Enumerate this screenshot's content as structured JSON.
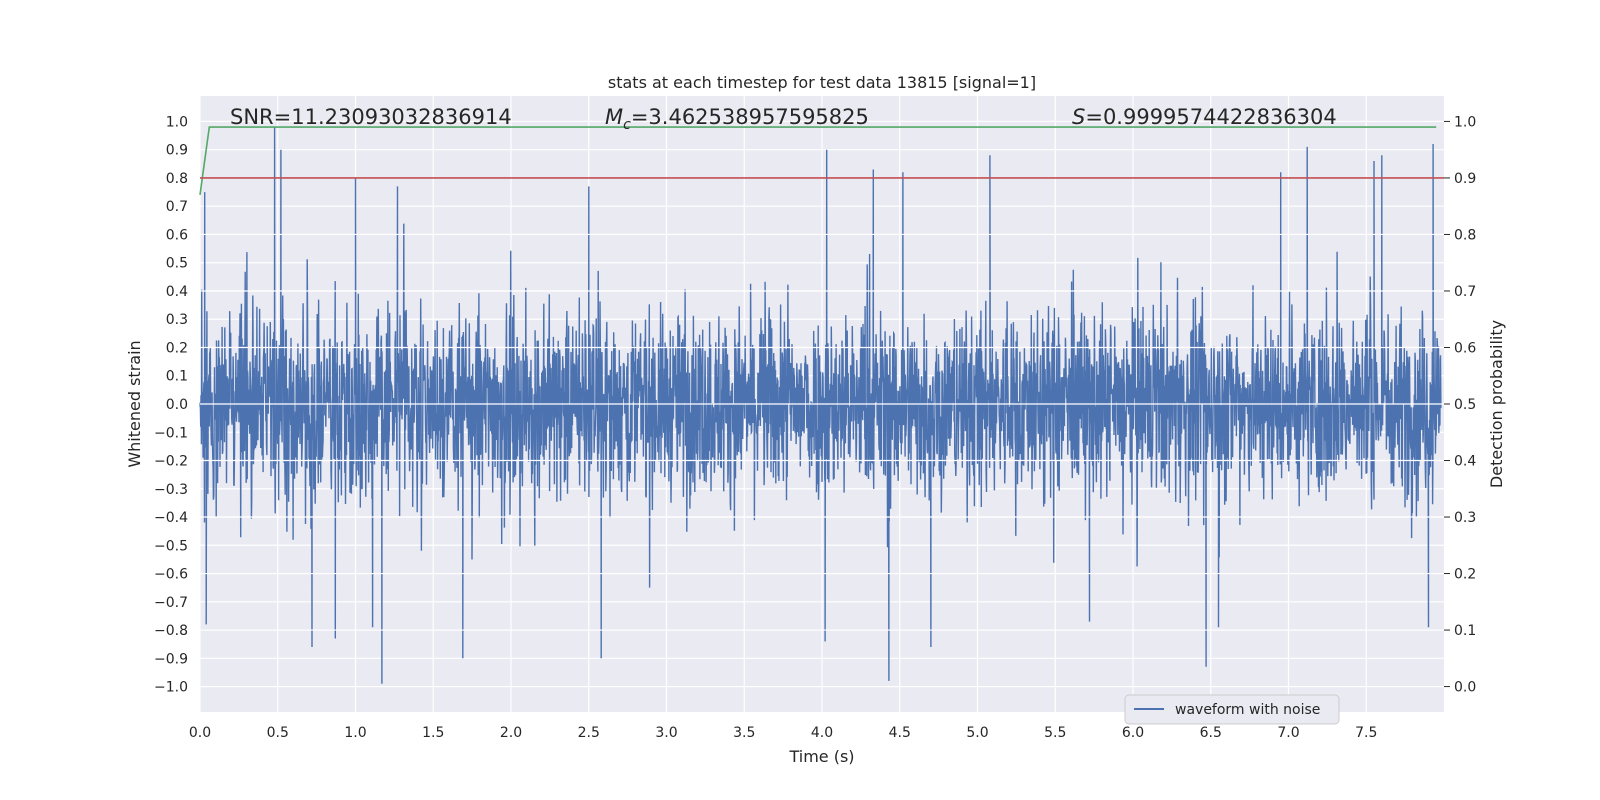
{
  "chart_data": {
    "type": "line",
    "title": "stats at each timestep for test data 13815 [signal=1]",
    "xlabel": "Time (s)",
    "ylabel": "Whitened strain",
    "y2label": "Detection probability",
    "xlim": [
      0.0,
      8.0
    ],
    "ylim": [
      -1.09,
      1.09
    ],
    "y2lim": [
      -0.045,
      1.045
    ],
    "xticks": [
      "0.0",
      "0.5",
      "1.0",
      "1.5",
      "2.0",
      "2.5",
      "3.0",
      "3.5",
      "4.0",
      "4.5",
      "5.0",
      "5.5",
      "6.0",
      "6.5",
      "7.0",
      "7.5"
    ],
    "yticks": [
      "1.0",
      "0.9",
      "0.8",
      "0.7",
      "0.6",
      "0.5",
      "0.4",
      "0.3",
      "0.2",
      "0.1",
      "0.0",
      "−0.1",
      "−0.2",
      "−0.3",
      "−0.4",
      "−0.5",
      "−0.6",
      "−0.7",
      "−0.8",
      "−0.9",
      "−1.0"
    ],
    "y2ticks": [
      "1.0",
      "0.9",
      "0.8",
      "0.7",
      "0.6",
      "0.5",
      "0.4",
      "0.3",
      "0.2",
      "0.1",
      "0.0"
    ],
    "grid": true,
    "legend": {
      "position": "lower-right",
      "entries": [
        "waveform with noise"
      ]
    },
    "annotations": {
      "snr": "SNR=11.23093032836914",
      "mc_symbol": "M",
      "mc_sub": "c",
      "mc_value": "=3.462538957595825",
      "s_symbol": "S",
      "s_value": "=0.9999574422836304"
    },
    "series": [
      {
        "name": "waveform with noise",
        "color": "#4c72b0",
        "axis": "left",
        "envelope_note": "dense noise, roughly within ±0.4 with spikes up to ±1.0",
        "peaks_x": [
          0.03,
          0.48,
          0.52,
          1.0,
          1.27,
          2.5,
          4.03,
          4.33,
          4.52,
          5.08,
          6.95,
          7.12,
          7.55,
          7.6,
          7.93
        ],
        "peaks_y": [
          0.75,
          0.98,
          0.9,
          0.8,
          0.77,
          0.77,
          0.9,
          0.83,
          0.82,
          0.88,
          0.82,
          0.91,
          0.86,
          0.88,
          0.92
        ],
        "troughs_x": [
          0.04,
          0.72,
          0.87,
          1.11,
          1.17,
          1.69,
          2.58,
          4.02,
          4.43,
          4.7,
          5.72,
          6.47,
          6.55,
          7.9
        ],
        "troughs_y": [
          -0.78,
          -0.86,
          -0.83,
          -0.79,
          -0.99,
          -0.9,
          -0.9,
          -0.84,
          -0.98,
          -0.86,
          -0.77,
          -0.93,
          -0.79,
          -0.79
        ]
      },
      {
        "name": "",
        "color": "#55a868",
        "axis": "right",
        "x": [
          0.0,
          0.06,
          7.95
        ],
        "y": [
          0.87,
          0.99,
          0.99
        ]
      },
      {
        "name": "",
        "color": "#c44e52",
        "axis": "right",
        "x": [
          0.0,
          8.0
        ],
        "y": [
          0.9,
          0.9
        ]
      }
    ]
  }
}
